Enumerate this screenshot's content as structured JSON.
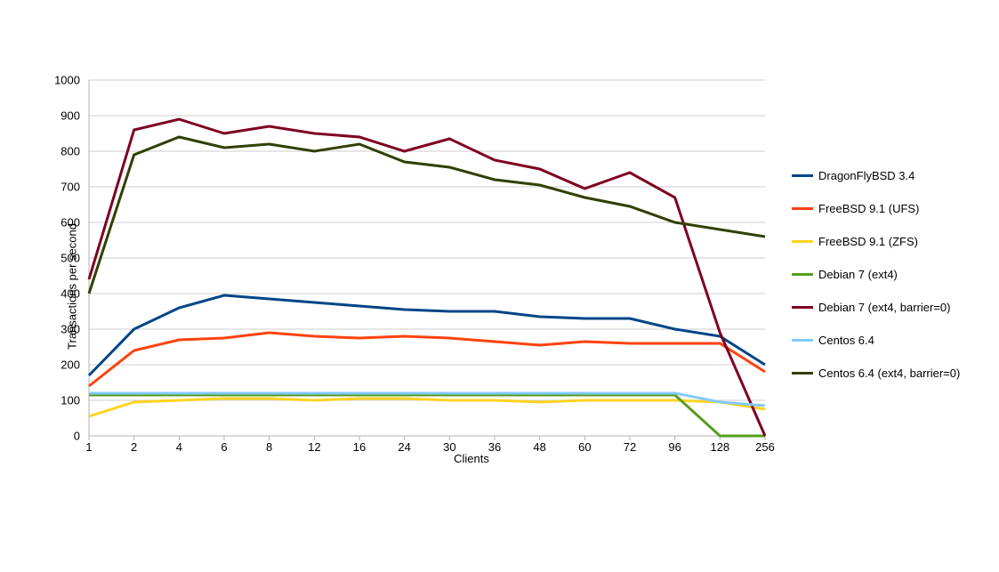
{
  "chart": {
    "type": "line",
    "background_color": "#ffffff",
    "grid_color": "#cccccc",
    "axis_color": "#b3b3b3",
    "label_color": "#000000",
    "label_fontsize": 13,
    "line_width": 3,
    "y_axis": {
      "title": "Transactions per second",
      "min": 0,
      "max": 1000,
      "tick_step": 100,
      "ticks": [
        0,
        100,
        200,
        300,
        400,
        500,
        600,
        700,
        800,
        900,
        1000
      ]
    },
    "x_axis": {
      "title": "Clients",
      "categories": [
        "1",
        "2",
        "4",
        "6",
        "8",
        "12",
        "16",
        "24",
        "30",
        "36",
        "48",
        "60",
        "72",
        "96",
        "128",
        "256"
      ]
    },
    "series": [
      {
        "name": "DragonFlyBSD 3.4",
        "color": "#004586",
        "values": [
          170,
          300,
          360,
          395,
          385,
          375,
          365,
          355,
          350,
          350,
          335,
          330,
          330,
          300,
          280,
          200
        ]
      },
      {
        "name": "FreeBSD 9.1 (UFS)",
        "color": "#ff420e",
        "values": [
          140,
          240,
          270,
          275,
          290,
          280,
          275,
          280,
          275,
          265,
          255,
          265,
          260,
          260,
          260,
          180
        ]
      },
      {
        "name": "FreeBSD 9.1 (ZFS)",
        "color": "#ffd320",
        "values": [
          55,
          95,
          100,
          105,
          105,
          100,
          105,
          105,
          100,
          100,
          95,
          100,
          100,
          100,
          95,
          75
        ]
      },
      {
        "name": "Debian 7 (ext4)",
        "color": "#579d1c",
        "values": [
          115,
          115,
          115,
          115,
          115,
          115,
          115,
          115,
          115,
          115,
          115,
          115,
          115,
          115,
          0,
          0
        ]
      },
      {
        "name": "Debian 7 (ext4, barrier=0)",
        "color": "#7e0021",
        "values": [
          440,
          860,
          890,
          850,
          870,
          850,
          840,
          800,
          835,
          775,
          750,
          695,
          740,
          670,
          290,
          0
        ]
      },
      {
        "name": "Centos 6.4",
        "color": "#83caff",
        "values": [
          120,
          120,
          120,
          120,
          120,
          120,
          120,
          120,
          120,
          120,
          120,
          120,
          120,
          120,
          95,
          85
        ]
      },
      {
        "name": "Centos 6.4 (ext4, barrier=0)",
        "color": "#314004",
        "values": [
          400,
          790,
          840,
          810,
          820,
          800,
          820,
          770,
          755,
          720,
          705,
          670,
          645,
          600,
          580,
          560
        ]
      }
    ]
  }
}
